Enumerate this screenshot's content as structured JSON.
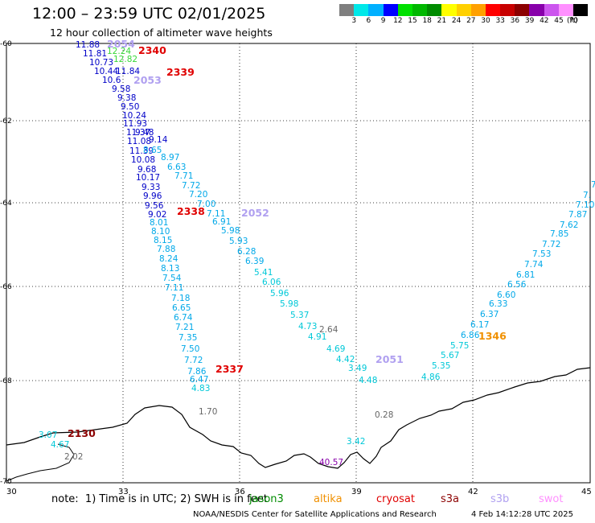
{
  "title": "12:00 – 23:59 UTC 02/01/2025",
  "subtitle": "12 hour collection of altimeter wave heights",
  "legend": {
    "ticks": [
      "3",
      "6",
      "9",
      "12",
      "15",
      "18",
      "21",
      "24",
      "27",
      "30",
      "33",
      "36",
      "39",
      "42",
      "45",
      "70"
    ],
    "units": "(ft)",
    "colors": [
      "#7f7f7f",
      "#00e8e8",
      "#00b0ff",
      "#0000ff",
      "#00e000",
      "#00b800",
      "#008c00",
      "#ffff00",
      "#ffd000",
      "#ffa000",
      "#ff0000",
      "#c80000",
      "#8c0000",
      "#8800aa",
      "#cc55ee",
      "#ff90ff",
      "#000000"
    ]
  },
  "axes": {
    "lon_labels": [
      "30",
      "33",
      "36",
      "39",
      "42",
      "45"
    ],
    "lat_labels": [
      "-60",
      "-62",
      "-64",
      "-66",
      "-68",
      "-70"
    ]
  },
  "tracks": [
    {
      "time": "2340",
      "color": "#e00000",
      "values": [
        {
          "v": "11.88",
          "c": "#0000c8"
        },
        {
          "v": "11.81",
          "c": "#0000c8"
        },
        {
          "v": "10.73",
          "c": "#0000c8"
        },
        {
          "v": "10.44",
          "c": "#0000c8"
        },
        {
          "v": "10.6",
          "c": "#0000c8"
        },
        {
          "v": "9.58",
          "c": "#0000c8"
        },
        {
          "v": "9.38",
          "c": "#0000c8"
        },
        {
          "v": "9.50",
          "c": "#0000c8"
        },
        {
          "v": "10.24",
          "c": "#0000c8"
        },
        {
          "v": "11.93",
          "c": "#0000c8"
        },
        {
          "v": "11.37",
          "c": "#0000c8"
        },
        {
          "v": "11.08",
          "c": "#0000c8"
        },
        {
          "v": "11.39",
          "c": "#0000c8"
        },
        {
          "v": "10.08",
          "c": "#0000c8"
        },
        {
          "v": "9.68",
          "c": "#0000c8"
        },
        {
          "v": "10.17",
          "c": "#0000c8"
        },
        {
          "v": "9.33",
          "c": "#0000c8"
        },
        {
          "v": "9.96",
          "c": "#0000c8"
        },
        {
          "v": "9.56",
          "c": "#0000c8"
        },
        {
          "v": "9.02",
          "c": "#0000c8"
        },
        {
          "v": "8.01",
          "c": "#00a8e8"
        },
        {
          "v": "8.10",
          "c": "#00a8e8"
        },
        {
          "v": "8.15",
          "c": "#00a8e8"
        },
        {
          "v": "7.88",
          "c": "#00a8e8"
        },
        {
          "v": "8.24",
          "c": "#00a8e8"
        },
        {
          "v": "8.13",
          "c": "#00a8e8"
        },
        {
          "v": "7.54",
          "c": "#00a8e8"
        },
        {
          "v": "7.11",
          "c": "#00a8e8"
        },
        {
          "v": "7.18",
          "c": "#00a8e8"
        },
        {
          "v": "6.65",
          "c": "#00a8e8"
        },
        {
          "v": "6.74",
          "c": "#00a8e8"
        },
        {
          "v": "7.21",
          "c": "#00a8e8"
        },
        {
          "v": "7.35",
          "c": "#00a8e8"
        },
        {
          "v": "7.50",
          "c": "#00a8e8"
        },
        {
          "v": "7.72",
          "c": "#00a8e8"
        },
        {
          "v": "7.86",
          "c": "#00a8e8"
        },
        {
          "v": "6.47",
          "c": "#00a8e8"
        },
        {
          "v": "4.83",
          "c": "#00c8d8"
        }
      ]
    },
    {
      "time": "2339",
      "color": "#e00000",
      "values": [
        {
          "v": "11.84",
          "c": "#0000c8"
        },
        {
          "v": "9.48",
          "c": "#0000c8"
        },
        {
          "v": "9.14",
          "c": "#0000c8"
        },
        {
          "v": "8.65",
          "c": "#00a8e8"
        },
        {
          "v": "8.97",
          "c": "#00a8e8"
        },
        {
          "v": "6.63",
          "c": "#00a8e8"
        },
        {
          "v": "7.71",
          "c": "#00a8e8"
        },
        {
          "v": "7.72",
          "c": "#00a8e8"
        },
        {
          "v": "7.20",
          "c": "#00a8e8"
        },
        {
          "v": "7.00",
          "c": "#00a8e8"
        },
        {
          "v": "7.11",
          "c": "#00a8e8"
        },
        {
          "v": "6.91",
          "c": "#00a8e8"
        },
        {
          "v": "5.98",
          "c": "#00a8e8"
        },
        {
          "v": "5.93",
          "c": "#00a8e8"
        },
        {
          "v": "6.28",
          "c": "#00a8e8"
        },
        {
          "v": "6.39",
          "c": "#00a8e8"
        },
        {
          "v": "5.41",
          "c": "#00c8d8"
        },
        {
          "v": "6.06",
          "c": "#00c8d8"
        },
        {
          "v": "5.96",
          "c": "#00c8d8"
        },
        {
          "v": "5.98",
          "c": "#00c8d8"
        },
        {
          "v": "5.37",
          "c": "#00c8d8"
        },
        {
          "v": "4.73",
          "c": "#00c8d8"
        },
        {
          "v": "4.91",
          "c": "#00c8d8"
        },
        {
          "v": "4.69",
          "c": "#00c8d8"
        },
        {
          "v": "4.42",
          "c": "#00c8d8"
        },
        {
          "v": "3.49",
          "c": "#00c8d8"
        },
        {
          "v": "4.48",
          "c": "#00c8d8"
        }
      ]
    },
    {
      "time": "1346",
      "color": "#f09000",
      "values": [
        {
          "v": "4.86",
          "c": "#00c8d8"
        },
        {
          "v": "5.35",
          "c": "#00c8d8"
        },
        {
          "v": "5.67",
          "c": "#00c8d8"
        },
        {
          "v": "5.75",
          "c": "#00c8d8"
        },
        {
          "v": "6.86",
          "c": "#00a8e8"
        },
        {
          "v": "6.17",
          "c": "#00a8e8"
        },
        {
          "v": "6.37",
          "c": "#00a8e8"
        },
        {
          "v": "6.33",
          "c": "#00a8e8"
        },
        {
          "v": "6.60",
          "c": "#00a8e8"
        },
        {
          "v": "6.56",
          "c": "#00a8e8"
        },
        {
          "v": "6.81",
          "c": "#00a8e8"
        },
        {
          "v": "7.74",
          "c": "#00a8e8"
        },
        {
          "v": "7.53",
          "c": "#00a8e8"
        },
        {
          "v": "7.72",
          "c": "#00a8e8"
        },
        {
          "v": "7.85",
          "c": "#00a8e8"
        },
        {
          "v": "7.62",
          "c": "#00a8e8"
        },
        {
          "v": "7.87",
          "c": "#00a8e8"
        },
        {
          "v": "7.10",
          "c": "#00a8e8"
        },
        {
          "v": "7.",
          "c": "#00a8e8"
        },
        {
          "v": "7",
          "c": "#00a8e8"
        }
      ]
    },
    {
      "time": "2338",
      "color": "#e00000",
      "values": []
    },
    {
      "time": "2337",
      "color": "#e00000",
      "values": []
    },
    {
      "time": "2054",
      "color": "#b0a0f0",
      "values": [
        {
          "v": "12.24",
          "c": "#38d838"
        },
        {
          "v": "12.82",
          "c": "#38d838"
        }
      ]
    },
    {
      "time": "2053",
      "color": "#b0a0f0",
      "values": []
    },
    {
      "time": "2052",
      "color": "#b0a0f0",
      "values": []
    },
    {
      "time": "2051",
      "color": "#b0a0f0",
      "values": []
    },
    {
      "time": "2130",
      "color": "#8c0000",
      "values": [
        {
          "v": "3.07",
          "c": "#00c8d8"
        },
        {
          "v": "4.67",
          "c": "#00c8d8"
        },
        {
          "v": "2.02",
          "c": "#666666"
        }
      ]
    }
  ],
  "extra_values": [
    {
      "v": "2.64",
      "c": "#666666"
    },
    {
      "v": "1.70",
      "c": "#666666"
    },
    {
      "v": "0.28",
      "c": "#666666"
    },
    {
      "v": "3.42",
      "c": "#00c8d8"
    },
    {
      "v": "40.57",
      "c": "#8800aa"
    }
  ],
  "note": "note:  1) Time is in UTC; 2) SWH is in feet",
  "satellites": [
    {
      "name": "jason3",
      "color": "#008c00"
    },
    {
      "name": "altika",
      "color": "#f09000"
    },
    {
      "name": "cryosat",
      "color": "#e00000"
    },
    {
      "name": "s3a",
      "color": "#8c0000"
    },
    {
      "name": "s3b",
      "color": "#b0a0f0"
    },
    {
      "name": "swot",
      "color": "#ff90ff"
    }
  ],
  "credit": "NOAA/NESDIS Center for Satellite Applications and Research",
  "timestamp": "4 Feb 14:12:28 UTC 2025"
}
